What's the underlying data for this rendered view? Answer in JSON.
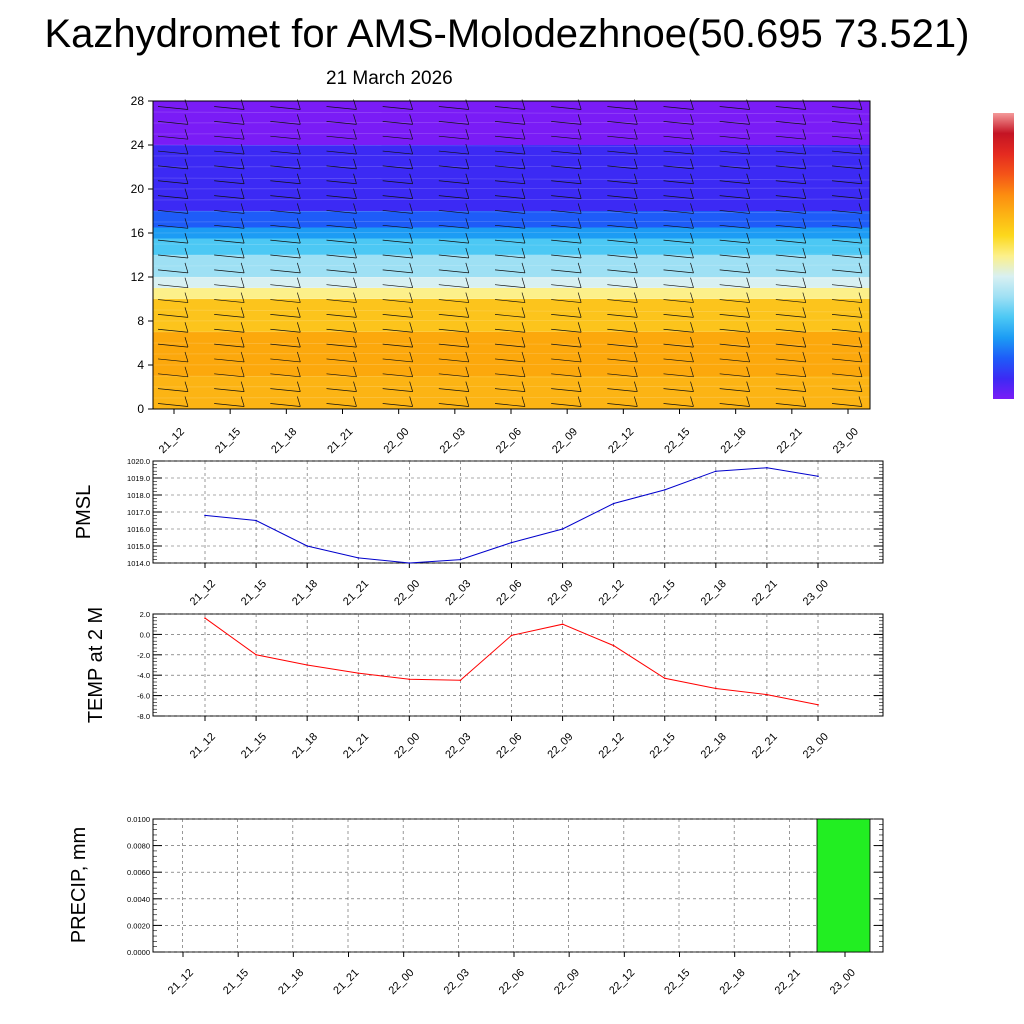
{
  "title": "Kazhydromet for AMS-Molodezhnoe(50.695 73.521)",
  "subtitle": "21 March 2026",
  "time_labels": [
    "21_12",
    "21_15",
    "21_18",
    "21_21",
    "22_00",
    "22_03",
    "22_06",
    "22_09",
    "22_12",
    "22_15",
    "22_18",
    "22_21",
    "23_00"
  ],
  "colorbar": {
    "colors": [
      "#7a1cf6",
      "#3c2af4",
      "#1e5cf8",
      "#1c9cf4",
      "#4cc8f4",
      "#9ee0f4",
      "#d8f0f2",
      "#fcf08a",
      "#fcd81c",
      "#fcb414",
      "#fc8c10",
      "#f45418",
      "#e42a20",
      "#c41424",
      "#f49a9a"
    ]
  },
  "chart_data": [
    {
      "type": "heatmap",
      "name": "vertical-profile",
      "xlabel": "",
      "ylabel": "",
      "yticks": [
        0,
        4,
        8,
        12,
        16,
        20,
        24,
        28
      ],
      "ylim": [
        0,
        28
      ],
      "x_categories": [
        "21_12",
        "21_15",
        "21_18",
        "21_21",
        "22_00",
        "22_03",
        "22_06",
        "22_09",
        "22_12",
        "22_15",
        "22_18",
        "22_21",
        "23_00"
      ],
      "layers": [
        {
          "from": 0,
          "to": 3,
          "color": "#fcb414"
        },
        {
          "from": 3,
          "to": 7,
          "color": "#fca80c"
        },
        {
          "from": 7,
          "to": 10,
          "color": "#fcc41c"
        },
        {
          "from": 10,
          "to": 11,
          "color": "#fcf08a"
        },
        {
          "from": 11,
          "to": 12,
          "color": "#d8f0f2"
        },
        {
          "from": 12,
          "to": 14,
          "color": "#9ee0f4"
        },
        {
          "from": 14,
          "to": 15.5,
          "color": "#4cc8f4"
        },
        {
          "from": 15.5,
          "to": 16.5,
          "color": "#1c9cf4"
        },
        {
          "from": 16.5,
          "to": 18,
          "color": "#1e5cf8"
        },
        {
          "from": 18,
          "to": 24,
          "color": "#3c2af4"
        },
        {
          "from": 24,
          "to": 28,
          "color": "#7a1cf6"
        }
      ]
    },
    {
      "type": "line",
      "name": "pmsl",
      "ylabel": "PMSL",
      "categories": [
        "21_12",
        "21_15",
        "21_18",
        "21_21",
        "22_00",
        "22_03",
        "22_06",
        "22_09",
        "22_12",
        "22_15",
        "22_18",
        "22_21",
        "23_00"
      ],
      "values": [
        1016.8,
        1016.5,
        1015.0,
        1014.3,
        1014.0,
        1014.2,
        1015.2,
        1016.0,
        1017.5,
        1018.3,
        1019.4,
        1019.6,
        1019.1
      ],
      "ylim": [
        1014.0,
        1020.0
      ],
      "yticks": [
        "1014.0",
        "1015.0",
        "1016.0",
        "1017.0",
        "1018.0",
        "1019.0",
        "1020.0"
      ],
      "color": "#0000cc"
    },
    {
      "type": "line",
      "name": "temp",
      "ylabel": "TEMP at 2 M",
      "categories": [
        "21_12",
        "21_15",
        "21_18",
        "21_21",
        "22_00",
        "22_03",
        "22_06",
        "22_09",
        "22_12",
        "22_15",
        "22_18",
        "22_21",
        "23_00"
      ],
      "values": [
        1.6,
        -2.0,
        -3.0,
        -3.8,
        -4.4,
        -4.5,
        -0.1,
        1.0,
        -1.1,
        -4.3,
        -5.3,
        -5.9,
        -6.9
      ],
      "ylim": [
        -8.0,
        2.0
      ],
      "yticks": [
        "-8.0",
        "-6.0",
        "-4.0",
        "-2.0",
        "0.0",
        "2.0"
      ],
      "color": "#ff0000"
    },
    {
      "type": "bar",
      "name": "precip",
      "ylabel": "PRECIP, mm",
      "categories": [
        "21_12",
        "21_15",
        "21_18",
        "21_21",
        "22_00",
        "22_03",
        "22_06",
        "22_09",
        "22_12",
        "22_15",
        "22_18",
        "22_21",
        "23_00"
      ],
      "values": [
        0,
        0,
        0,
        0,
        0,
        0,
        0,
        0,
        0,
        0,
        0,
        0,
        0.01
      ],
      "ylim": [
        0,
        0.01
      ],
      "yticks": [
        "0.0000",
        "0.0020",
        "0.0040",
        "0.0060",
        "0.0080",
        "0.0100"
      ],
      "color": "#22ee22"
    }
  ]
}
